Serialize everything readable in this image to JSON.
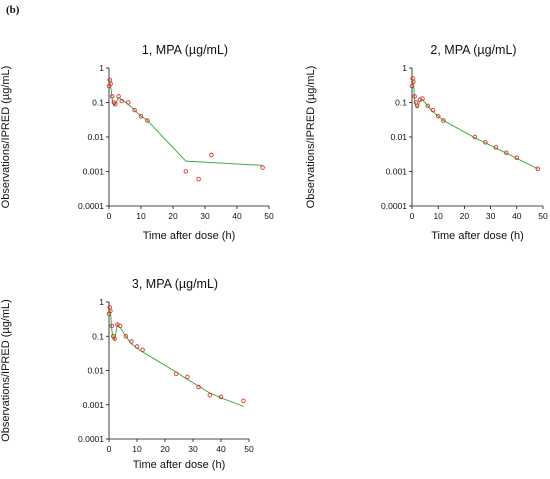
{
  "panel_label": "(b)",
  "chart_data": [
    {
      "type": "line",
      "title": "1, MPA (µg/mL)",
      "xlabel": "Time after dose (h)",
      "ylabel": "Observations/IPRED (µg/mL)",
      "ylog": true,
      "ylim": [
        0.0001,
        1
      ],
      "xlim": [
        0,
        50
      ],
      "xticks": [
        0,
        10,
        20,
        30,
        40,
        50
      ],
      "yticks": [
        0.0001,
        0.001,
        0.01,
        0.1,
        1
      ],
      "ytick_labels": [
        "0.0001",
        "0.001",
        "0.01",
        "0.1",
        "1"
      ],
      "series": [
        {
          "kind": "line",
          "x": [
            0,
            0.25,
            0.5,
            0.75,
            1,
            1.5,
            2,
            3,
            4,
            6,
            8,
            10,
            12,
            24,
            48
          ],
          "y": [
            0.28,
            0.42,
            0.3,
            0.2,
            0.12,
            0.08,
            0.09,
            0.14,
            0.12,
            0.09,
            0.06,
            0.04,
            0.03,
            0.002,
            0.0015
          ]
        },
        {
          "kind": "scatter",
          "x": [
            0,
            0.25,
            0.5,
            1,
            1.5,
            2,
            3,
            4,
            6,
            8,
            10,
            12,
            24,
            28,
            32,
            48
          ],
          "y": [
            0.3,
            0.45,
            0.35,
            0.15,
            0.1,
            0.09,
            0.15,
            0.11,
            0.1,
            0.06,
            0.04,
            0.03,
            0.001,
            0.0006,
            0.003,
            0.0013
          ]
        }
      ]
    },
    {
      "type": "line",
      "title": "2, MPA (µg/mL)",
      "xlabel": "Time after dose (h)",
      "ylabel": "Observations/IPRED (µg/mL)",
      "ylog": true,
      "ylim": [
        0.0001,
        1
      ],
      "xlim": [
        0,
        50
      ],
      "xticks": [
        0,
        10,
        20,
        30,
        40,
        50
      ],
      "yticks": [
        0.0001,
        0.001,
        0.01,
        0.1,
        1
      ],
      "ytick_labels": [
        "0.0001",
        "0.001",
        "0.01",
        "0.1",
        "1"
      ],
      "series": [
        {
          "kind": "line",
          "x": [
            0,
            0.25,
            0.5,
            0.75,
            1,
            1.5,
            2,
            3,
            4,
            6,
            8,
            10,
            12,
            24,
            28,
            32,
            36,
            40,
            48
          ],
          "y": [
            0.3,
            0.45,
            0.35,
            0.22,
            0.12,
            0.08,
            0.07,
            0.11,
            0.12,
            0.08,
            0.055,
            0.04,
            0.03,
            0.0095,
            0.0068,
            0.0048,
            0.0034,
            0.0024,
            0.0012
          ]
        },
        {
          "kind": "scatter",
          "x": [
            0,
            0.25,
            0.5,
            1,
            1.5,
            2,
            3,
            4,
            6,
            8,
            10,
            12,
            24,
            28,
            32,
            36,
            40,
            48
          ],
          "y": [
            0.3,
            0.5,
            0.4,
            0.15,
            0.1,
            0.08,
            0.12,
            0.13,
            0.08,
            0.06,
            0.04,
            0.03,
            0.01,
            0.007,
            0.005,
            0.0035,
            0.0025,
            0.0012
          ]
        }
      ]
    },
    {
      "type": "line",
      "title": "3, MPA (µg/mL)",
      "xlabel": "Time after dose (h)",
      "ylabel": "Observations/IPRED (µg/mL)",
      "ylog": true,
      "ylim": [
        0.0001,
        1
      ],
      "xlim": [
        0,
        50
      ],
      "xticks": [
        0,
        10,
        20,
        30,
        40,
        50
      ],
      "yticks": [
        0.0001,
        0.001,
        0.01,
        0.1,
        1
      ],
      "ytick_labels": [
        "0.0001",
        "0.001",
        "0.01",
        "0.1",
        "1"
      ],
      "series": [
        {
          "kind": "line",
          "x": [
            0,
            0.25,
            0.5,
            0.75,
            1,
            1.5,
            2,
            3,
            4,
            6,
            8,
            10,
            12,
            24,
            28,
            32,
            36,
            40,
            48
          ],
          "y": [
            0.4,
            0.6,
            0.5,
            0.3,
            0.15,
            0.09,
            0.08,
            0.22,
            0.18,
            0.1,
            0.06,
            0.045,
            0.035,
            0.009,
            0.0055,
            0.0035,
            0.0022,
            0.0016,
            0.0009
          ]
        },
        {
          "kind": "scatter",
          "x": [
            0,
            0.25,
            0.5,
            1,
            1.5,
            2,
            3,
            4,
            6,
            8,
            10,
            12,
            24,
            28,
            32,
            36,
            40,
            48
          ],
          "y": [
            0.45,
            0.7,
            0.55,
            0.2,
            0.1,
            0.085,
            0.22,
            0.2,
            0.1,
            0.07,
            0.05,
            0.04,
            0.008,
            0.0065,
            0.0033,
            0.0019,
            0.0017,
            0.0013
          ]
        }
      ]
    }
  ]
}
